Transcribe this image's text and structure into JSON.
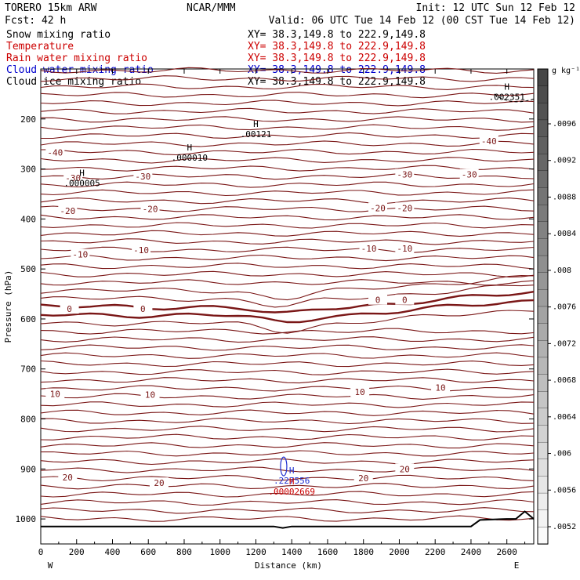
{
  "header": {
    "model": "TORERO  15km ARW",
    "center": "NCAR/MMM",
    "init": "Init: 12 UTC Sun 12 Feb 12",
    "fcst": "Fcst:   42 h",
    "valid": "Valid: 06 UTC Tue 14 Feb 12 (00 CST Tue 14 Feb 12)"
  },
  "legend": [
    {
      "label": "Snow mixing ratio",
      "xy": "XY=  38.3,149.8 to 222.9,149.8",
      "color": "#000000"
    },
    {
      "label": "Temperature",
      "xy": "XY=  38.3,149.8 to 222.9,149.8",
      "color": "#cc0000"
    },
    {
      "label": "Rain water mixing ratio",
      "xy": "XY=  38.3,149.8 to 222.9,149.8",
      "color": "#cc0000"
    },
    {
      "label": "Cloud water mixing ratio",
      "xy": "XY=  38.3,149.8 to 222.9,149.8",
      "color": "#0000cc"
    },
    {
      "label": "Cloud ice mixing ratio",
      "xy": "XY=  38.3,149.8 to 222.9,149.8",
      "color": "#000000"
    }
  ],
  "colors": {
    "isotherm": "#7a1616",
    "freezing": "#7a1616",
    "cloud_water": "#1f2fd0",
    "rain": "#cc0000",
    "terrain": "#000000"
  },
  "chart_data": {
    "type": "line",
    "xlabel": "Distance (km)",
    "ylabel": "Pressure (hPa)",
    "xlim": [
      0,
      2750
    ],
    "ylim": [
      1050,
      100
    ],
    "x_ticks": [
      0,
      200,
      400,
      600,
      800,
      1000,
      1200,
      1400,
      1600,
      1800,
      2000,
      2200,
      2400,
      2600
    ],
    "y_ticks": [
      200,
      300,
      400,
      500,
      600,
      700,
      800,
      900,
      1000
    ],
    "x_end_labels": {
      "left": "W",
      "right": "E"
    },
    "temperature_contour_labels": [
      {
        "value": "-40",
        "x": 80,
        "p": 267
      },
      {
        "value": "-40",
        "x": 2500,
        "p": 244
      },
      {
        "value": "-30",
        "x": 180,
        "p": 318
      },
      {
        "value": "-30",
        "x": 570,
        "p": 315
      },
      {
        "value": "-30",
        "x": 2030,
        "p": 311
      },
      {
        "value": "-30",
        "x": 2390,
        "p": 311
      },
      {
        "value": "-20",
        "x": 150,
        "p": 384
      },
      {
        "value": "-20",
        "x": 610,
        "p": 380
      },
      {
        "value": "-20",
        "x": 1880,
        "p": 378
      },
      {
        "value": "-20",
        "x": 2030,
        "p": 378
      },
      {
        "value": "-10",
        "x": 220,
        "p": 471
      },
      {
        "value": "-10",
        "x": 560,
        "p": 462
      },
      {
        "value": "-10",
        "x": 1830,
        "p": 459
      },
      {
        "value": "-10",
        "x": 2030,
        "p": 459
      },
      {
        "value": "0",
        "x": 160,
        "p": 580
      },
      {
        "value": "0",
        "x": 570,
        "p": 580
      },
      {
        "value": "0",
        "x": 1880,
        "p": 562
      },
      {
        "value": "0",
        "x": 2030,
        "p": 562
      },
      {
        "value": "10",
        "x": 80,
        "p": 750
      },
      {
        "value": "10",
        "x": 610,
        "p": 751
      },
      {
        "value": "10",
        "x": 1780,
        "p": 746
      },
      {
        "value": "10",
        "x": 2230,
        "p": 737
      },
      {
        "value": "20",
        "x": 150,
        "p": 917
      },
      {
        "value": "20",
        "x": 660,
        "p": 928
      },
      {
        "value": "20",
        "x": 1800,
        "p": 918
      },
      {
        "value": "20",
        "x": 2030,
        "p": 900
      }
    ],
    "extrema_labels": [
      {
        "mark": "H",
        "value": ".00121",
        "x": 1200,
        "p": 235,
        "color": "#000000"
      },
      {
        "mark": "H",
        "value": ".000010",
        "x": 830,
        "p": 282,
        "color": "#000000"
      },
      {
        "mark": "H",
        "value": ".000005",
        "x": 230,
        "p": 333,
        "color": "#000000"
      },
      {
        "mark": "H",
        "value": ".002351",
        "x": 2600,
        "p": 160,
        "color": "#000000"
      },
      {
        "mark": "H",
        "value": ".227556",
        "x": 1400,
        "p": 928,
        "color": "#1f2fd0"
      },
      {
        "mark": "H",
        "value": ".00002669",
        "x": 1400,
        "p": 950,
        "color": "#cc0000"
      }
    ],
    "colorbar": {
      "unit": "g kg⁻¹",
      "tick_labels": [
        ".0096",
        ".0092",
        ".0088",
        ".0084",
        ".008",
        ".0076",
        ".0072",
        ".0068",
        ".0064",
        ".006",
        ".0056",
        ".0052"
      ]
    }
  }
}
